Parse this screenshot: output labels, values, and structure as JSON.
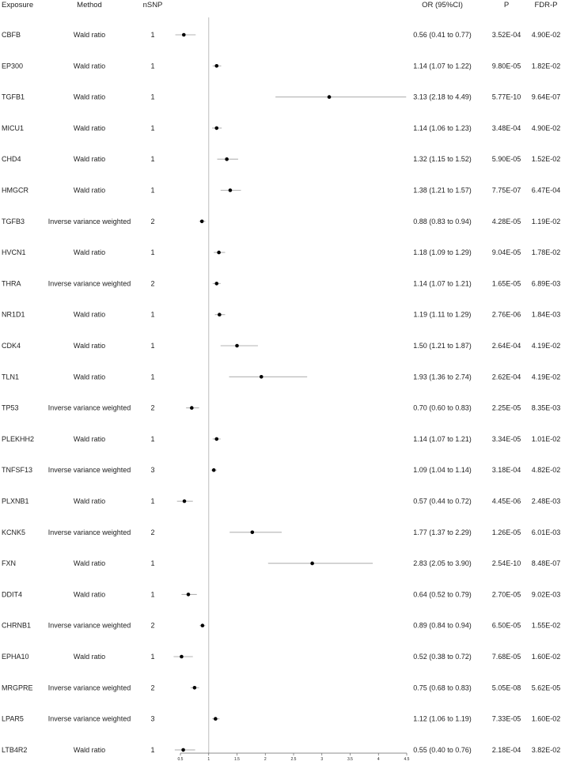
{
  "chart_data": {
    "type": "forest",
    "headers": {
      "exposure": "Exposure",
      "method": "Method",
      "nsnp": "nSNP",
      "or": "OR (95%CI)",
      "p": "P",
      "fdr": "FDR-P"
    },
    "xlim": [
      0.5,
      4.5
    ],
    "x_ticks": [
      "0.5",
      "1",
      "1.5",
      "2",
      "2.5",
      "3",
      "3.5",
      "4",
      "4.5"
    ],
    "reference_line": 1,
    "rows": [
      {
        "exposure": "CBFB",
        "method": "Wald ratio",
        "nsnp": "1",
        "or": 0.56,
        "lo": 0.41,
        "hi": 0.77,
        "or_text": "0.56 (0.41 to 0.77)",
        "p": "3.52E-04",
        "fdr": "4.90E-02"
      },
      {
        "exposure": "EP300",
        "method": "Wald ratio",
        "nsnp": "1",
        "or": 1.14,
        "lo": 1.07,
        "hi": 1.22,
        "or_text": "1.14 (1.07 to 1.22)",
        "p": "9.80E-05",
        "fdr": "1.82E-02"
      },
      {
        "exposure": "TGFB1",
        "method": "Wald ratio",
        "nsnp": "1",
        "or": 3.13,
        "lo": 2.18,
        "hi": 4.49,
        "or_text": "3.13 (2.18 to 4.49)",
        "p": "5.77E-10",
        "fdr": "9.64E-07"
      },
      {
        "exposure": "MICU1",
        "method": "Wald ratio",
        "nsnp": "1",
        "or": 1.14,
        "lo": 1.06,
        "hi": 1.23,
        "or_text": "1.14 (1.06 to 1.23)",
        "p": "3.48E-04",
        "fdr": "4.90E-02"
      },
      {
        "exposure": "CHD4",
        "method": "Wald ratio",
        "nsnp": "1",
        "or": 1.32,
        "lo": 1.15,
        "hi": 1.52,
        "or_text": "1.32 (1.15 to 1.52)",
        "p": "5.90E-05",
        "fdr": "1.52E-02"
      },
      {
        "exposure": "HMGCR",
        "method": "Wald ratio",
        "nsnp": "1",
        "or": 1.38,
        "lo": 1.21,
        "hi": 1.57,
        "or_text": "1.38 (1.21 to 1.57)",
        "p": "7.75E-07",
        "fdr": "6.47E-04"
      },
      {
        "exposure": "TGFB3",
        "method": "Inverse variance weighted",
        "nsnp": "2",
        "or": 0.88,
        "lo": 0.83,
        "hi": 0.94,
        "or_text": "0.88 (0.83 to 0.94)",
        "p": "4.28E-05",
        "fdr": "1.19E-02"
      },
      {
        "exposure": "HVCN1",
        "method": "Wald ratio",
        "nsnp": "1",
        "or": 1.18,
        "lo": 1.09,
        "hi": 1.29,
        "or_text": "1.18 (1.09 to 1.29)",
        "p": "9.04E-05",
        "fdr": "1.78E-02"
      },
      {
        "exposure": "THRA",
        "method": "Inverse variance weighted",
        "nsnp": "2",
        "or": 1.14,
        "lo": 1.07,
        "hi": 1.21,
        "or_text": "1.14 (1.07 to 1.21)",
        "p": "1.65E-05",
        "fdr": "6.89E-03"
      },
      {
        "exposure": "NR1D1",
        "method": "Wald ratio",
        "nsnp": "1",
        "or": 1.19,
        "lo": 1.11,
        "hi": 1.29,
        "or_text": "1.19 (1.11 to 1.29)",
        "p": "2.76E-06",
        "fdr": "1.84E-03"
      },
      {
        "exposure": "CDK4",
        "method": "Wald ratio",
        "nsnp": "1",
        "or": 1.5,
        "lo": 1.21,
        "hi": 1.87,
        "or_text": "1.50 (1.21 to 1.87)",
        "p": "2.64E-04",
        "fdr": "4.19E-02"
      },
      {
        "exposure": "TLN1",
        "method": "Wald ratio",
        "nsnp": "1",
        "or": 1.93,
        "lo": 1.36,
        "hi": 2.74,
        "or_text": "1.93 (1.36 to 2.74)",
        "p": "2.62E-04",
        "fdr": "4.19E-02"
      },
      {
        "exposure": "TP53",
        "method": "Inverse variance weighted",
        "nsnp": "2",
        "or": 0.7,
        "lo": 0.6,
        "hi": 0.83,
        "or_text": "0.70 (0.60 to 0.83)",
        "p": "2.25E-05",
        "fdr": "8.35E-03"
      },
      {
        "exposure": "PLEKHH2",
        "method": "Wald ratio",
        "nsnp": "1",
        "or": 1.14,
        "lo": 1.07,
        "hi": 1.21,
        "or_text": "1.14 (1.07 to 1.21)",
        "p": "3.34E-05",
        "fdr": "1.01E-02"
      },
      {
        "exposure": "TNFSF13",
        "method": "Inverse variance weighted",
        "nsnp": "3",
        "or": 1.09,
        "lo": 1.04,
        "hi": 1.14,
        "or_text": "1.09 (1.04 to 1.14)",
        "p": "3.18E-04",
        "fdr": "4.82E-02"
      },
      {
        "exposure": "PLXNB1",
        "method": "Wald ratio",
        "nsnp": "1",
        "or": 0.57,
        "lo": 0.44,
        "hi": 0.72,
        "or_text": "0.57 (0.44 to 0.72)",
        "p": "4.45E-06",
        "fdr": "2.48E-03"
      },
      {
        "exposure": "KCNK5",
        "method": "Inverse variance weighted",
        "nsnp": "2",
        "or": 1.77,
        "lo": 1.37,
        "hi": 2.29,
        "or_text": "1.77 (1.37 to 2.29)",
        "p": "1.26E-05",
        "fdr": "6.01E-03"
      },
      {
        "exposure": "FXN",
        "method": "Wald ratio",
        "nsnp": "1",
        "or": 2.83,
        "lo": 2.05,
        "hi": 3.9,
        "or_text": "2.83 (2.05 to 3.90)",
        "p": "2.54E-10",
        "fdr": "8.48E-07"
      },
      {
        "exposure": "DDIT4",
        "method": "Wald ratio",
        "nsnp": "1",
        "or": 0.64,
        "lo": 0.52,
        "hi": 0.79,
        "or_text": "0.64 (0.52 to 0.79)",
        "p": "2.70E-05",
        "fdr": "9.02E-03"
      },
      {
        "exposure": "CHRNB1",
        "method": "Inverse variance weighted",
        "nsnp": "2",
        "or": 0.89,
        "lo": 0.84,
        "hi": 0.94,
        "or_text": "0.89 (0.84 to 0.94)",
        "p": "6.50E-05",
        "fdr": "1.55E-02"
      },
      {
        "exposure": "EPHA10",
        "method": "Wald ratio",
        "nsnp": "1",
        "or": 0.52,
        "lo": 0.38,
        "hi": 0.72,
        "or_text": "0.52 (0.38 to 0.72)",
        "p": "7.68E-05",
        "fdr": "1.60E-02"
      },
      {
        "exposure": "MRGPRE",
        "method": "Inverse variance weighted",
        "nsnp": "2",
        "or": 0.75,
        "lo": 0.68,
        "hi": 0.83,
        "or_text": "0.75 (0.68 to 0.83)",
        "p": "5.05E-08",
        "fdr": "5.62E-05"
      },
      {
        "exposure": "LPAR5",
        "method": "Inverse variance weighted",
        "nsnp": "3",
        "or": 1.12,
        "lo": 1.06,
        "hi": 1.19,
        "or_text": "1.12 (1.06 to 1.19)",
        "p": "7.33E-05",
        "fdr": "1.60E-02"
      },
      {
        "exposure": "LTB4R2",
        "method": "Wald ratio",
        "nsnp": "1",
        "or": 0.55,
        "lo": 0.4,
        "hi": 0.76,
        "or_text": "0.55 (0.40 to 0.76)",
        "p": "2.18E-04",
        "fdr": "3.82E-02"
      }
    ],
    "colors": {
      "ci_line": "#b3b3b3",
      "point": "#000000",
      "ref_line": "#bdbdbd",
      "text": "#222222"
    }
  }
}
